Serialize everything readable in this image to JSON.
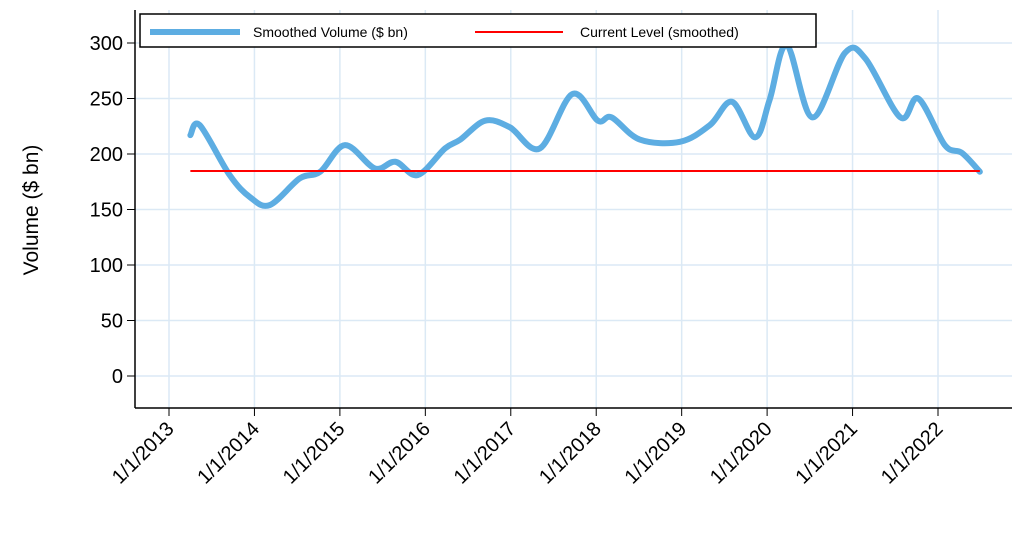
{
  "chart_data": {
    "type": "line",
    "title": "",
    "xlabel": "",
    "ylabel": "Volume ($ bn)",
    "ylim": [
      -30,
      300
    ],
    "yticks": [
      0,
      50,
      100,
      150,
      200,
      250,
      300
    ],
    "xlim": [
      2012.6,
      2023.0
    ],
    "xticks": [
      2013,
      2014,
      2015,
      2016,
      2017,
      2018,
      2019,
      2020,
      2021,
      2022
    ],
    "xtick_labels": [
      "1/1/2013",
      "1/1/2014",
      "1/1/2015",
      "1/1/2016",
      "1/1/2017",
      "1/1/2018",
      "1/1/2019",
      "1/1/2020",
      "1/1/2021",
      "1/1/2022"
    ],
    "grid": true,
    "legend_position": "top",
    "series": [
      {
        "name": "Smoothed Volume ($ bn)",
        "color": "#5dade2",
        "x": [
          2013.25,
          2013.36,
          2013.71,
          2013.95,
          2014.18,
          2014.53,
          2014.77,
          2015.06,
          2015.41,
          2015.65,
          2015.91,
          2016.23,
          2016.41,
          2016.7,
          2016.99,
          2017.34,
          2017.72,
          2018.02,
          2018.18,
          2018.51,
          2018.98,
          2019.33,
          2019.59,
          2019.86,
          2020.03,
          2020.23,
          2020.53,
          2020.91,
          2021.15,
          2021.56,
          2021.77,
          2022.08,
          2022.28,
          2022.49
        ],
        "values": [
          217,
          226,
          181,
          161,
          154,
          178,
          184,
          208,
          187,
          193,
          181,
          205,
          213,
          230,
          224,
          205,
          254,
          230,
          233,
          213,
          211,
          226,
          247,
          215,
          249,
          298,
          233,
          291,
          286,
          233,
          250,
          208,
          201,
          184
        ]
      },
      {
        "name": "Current Level (smoothed)",
        "color": "#ff0000",
        "x": [
          2013.25,
          2022.49
        ],
        "values": [
          184.7,
          184.7
        ]
      }
    ]
  }
}
